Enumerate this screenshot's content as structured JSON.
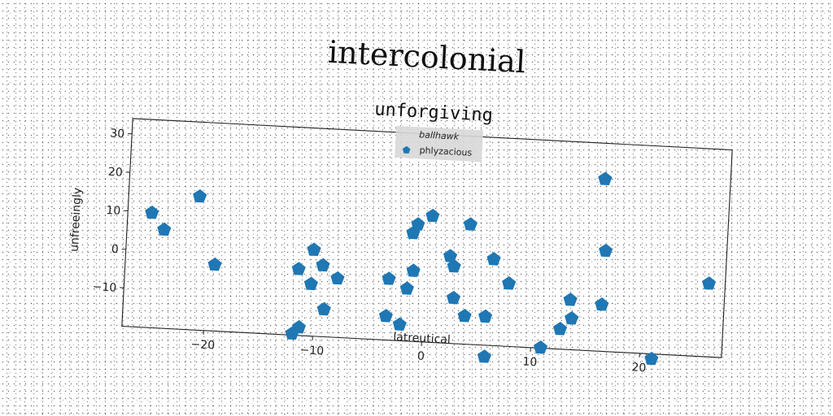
{
  "chart_data": {
    "type": "scatter",
    "suptitle": "intercolonial",
    "title": "unforgiving",
    "xlabel": "latreutical",
    "ylabel": "unfreeingly",
    "xlim": [
      -27.5,
      27.5
    ],
    "ylim": [
      -20,
      34
    ],
    "xticks": [
      -20,
      -10,
      0,
      10,
      20
    ],
    "xtick_labels": [
      "−20",
      "−10",
      "0",
      "10",
      "20"
    ],
    "yticks": [
      -10,
      0,
      10,
      20,
      30
    ],
    "ytick_labels": [
      "−10",
      "0",
      "10",
      "20",
      "30"
    ],
    "grid": false,
    "legend": {
      "title": "ballhawk",
      "placement": "top-center",
      "entries": [
        "phlyzacious"
      ]
    },
    "marker": "pentagon",
    "series": [
      {
        "name": "phlyzacious",
        "color": "#1f77b4",
        "points": [
          [
            -25.3,
            9.8
          ],
          [
            -24.1,
            5.6
          ],
          [
            -21.0,
            14.7
          ],
          [
            -19.3,
            -2.8
          ],
          [
            -11.6,
            -2.8
          ],
          [
            -10.3,
            2.4
          ],
          [
            -9.4,
            -1.5
          ],
          [
            -10.4,
            -6.5
          ],
          [
            -8.0,
            -4.7
          ],
          [
            -9.1,
            -12.9
          ],
          [
            -11.3,
            -17.9
          ],
          [
            -11.9,
            -19.6
          ],
          [
            -3.4,
            -13.8
          ],
          [
            -3.3,
            -4.1
          ],
          [
            -2.1,
            -15.8
          ],
          [
            -1.6,
            -6.4
          ],
          [
            -1.1,
            -1.7
          ],
          [
            -1.3,
            8.1
          ],
          [
            -0.9,
            10.4
          ],
          [
            0.4,
            12.8
          ],
          [
            3.9,
            11.1
          ],
          [
            2.2,
            2.6
          ],
          [
            2.6,
            0.0
          ],
          [
            2.7,
            -8.2
          ],
          [
            3.8,
            -12.7
          ],
          [
            5.7,
            -12.6
          ],
          [
            5.8,
            -23.0
          ],
          [
            6.2,
            2.4
          ],
          [
            7.7,
            -3.7
          ],
          [
            10.9,
            -19.9
          ],
          [
            12.6,
            -14.8
          ],
          [
            13.6,
            -11.9
          ],
          [
            13.4,
            -7.1
          ],
          [
            16.3,
            -7.9
          ],
          [
            16.4,
            6.1
          ],
          [
            16.0,
            24.7
          ],
          [
            21.1,
            -21.3
          ],
          [
            26.0,
            -1.0
          ]
        ]
      }
    ]
  }
}
